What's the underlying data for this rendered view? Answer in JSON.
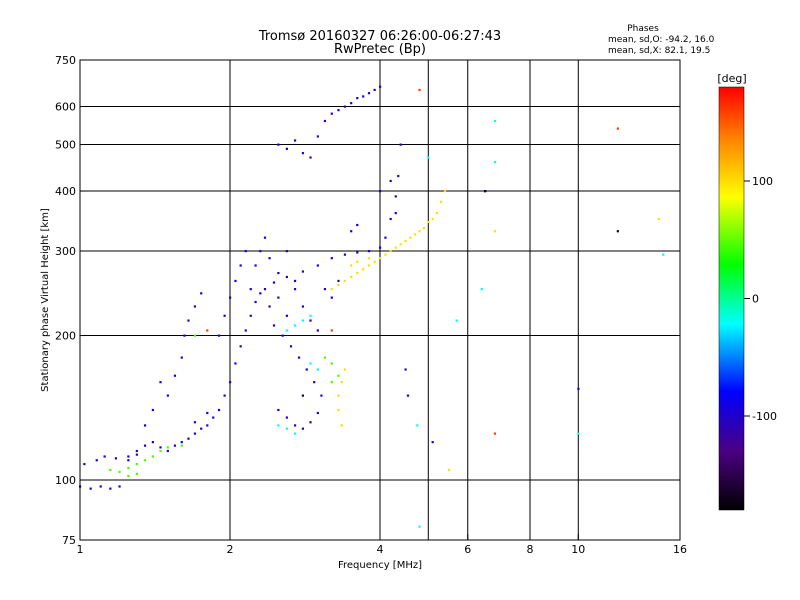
{
  "chart_data": {
    "type": "scatter",
    "title": "Tromsø 20160327 06:26:00-06:27:43",
    "subtitle": "RwPretec (Bp)",
    "xlabel": "Frequency [MHz]",
    "ylabel": "Stationary phase Virtual Height [km]",
    "x_scale": "log2",
    "y_scale": "log",
    "xlim": [
      1,
      16
    ],
    "ylim": [
      75,
      750
    ],
    "x_ticks": [
      1,
      2,
      4,
      6,
      8,
      10,
      16
    ],
    "y_ticks": [
      75,
      100,
      200,
      300,
      400,
      500,
      600,
      750
    ],
    "x_gridlines": [
      2,
      4,
      5,
      6,
      8,
      10
    ],
    "y_gridlines": [
      100,
      200,
      300,
      400,
      500,
      600
    ],
    "grid": true,
    "phases_box": {
      "title": "Phases",
      "line_o": "mean, sd,O: -94.2, 16.0",
      "line_x": "mean, sd,X:  82.1, 19.5"
    },
    "colorbar": {
      "label": "[deg]",
      "range": [
        -180,
        180
      ],
      "ticks": [
        100,
        0,
        -100
      ],
      "colormap": [
        "#000000",
        "#4b0082",
        "#0000ff",
        "#00ffff",
        "#00ff00",
        "#ffff00",
        "#ff0000"
      ]
    },
    "series": [
      {
        "phase_deg": -100,
        "points": [
          [
            1.0,
            97
          ],
          [
            1.05,
            96
          ],
          [
            1.1,
            97
          ],
          [
            1.15,
            96
          ],
          [
            1.2,
            97
          ],
          [
            1.02,
            108
          ],
          [
            1.08,
            110
          ],
          [
            1.12,
            112
          ],
          [
            1.18,
            111
          ],
          [
            1.25,
            112
          ],
          [
            1.3,
            115
          ],
          [
            1.35,
            118
          ],
          [
            1.4,
            120
          ],
          [
            1.45,
            117
          ],
          [
            1.5,
            115
          ],
          [
            1.55,
            118
          ],
          [
            1.6,
            120
          ],
          [
            1.65,
            122
          ],
          [
            1.7,
            125
          ],
          [
            1.75,
            128
          ],
          [
            1.8,
            130
          ],
          [
            1.85,
            135
          ],
          [
            1.9,
            140
          ],
          [
            1.95,
            150
          ],
          [
            2.0,
            160
          ],
          [
            2.05,
            175
          ],
          [
            2.1,
            190
          ],
          [
            2.15,
            205
          ],
          [
            2.2,
            220
          ],
          [
            2.25,
            235
          ],
          [
            2.3,
            245
          ],
          [
            2.35,
            250
          ],
          [
            2.45,
            258
          ],
          [
            2.6,
            265
          ],
          [
            2.8,
            272
          ],
          [
            3.0,
            280
          ],
          [
            3.2,
            290
          ],
          [
            3.4,
            295
          ],
          [
            3.6,
            298
          ],
          [
            3.8,
            300
          ],
          [
            4.0,
            305
          ],
          [
            4.1,
            320
          ],
          [
            4.2,
            350
          ],
          [
            4.3,
            390
          ],
          [
            4.35,
            430
          ],
          [
            4.4,
            500
          ],
          [
            1.5,
            150
          ],
          [
            1.55,
            165
          ],
          [
            1.6,
            180
          ],
          [
            1.62,
            200
          ],
          [
            1.65,
            215
          ],
          [
            1.7,
            230
          ],
          [
            1.75,
            245
          ],
          [
            1.4,
            140
          ],
          [
            1.35,
            130
          ],
          [
            1.45,
            160
          ],
          [
            2.2,
            250
          ],
          [
            2.25,
            280
          ],
          [
            2.3,
            300
          ],
          [
            2.35,
            320
          ],
          [
            2.4,
            290
          ],
          [
            2.5,
            270
          ],
          [
            2.6,
            300
          ],
          [
            2.7,
            250
          ],
          [
            2.8,
            230
          ],
          [
            2.9,
            215
          ],
          [
            3.0,
            205
          ],
          [
            2.45,
            210
          ],
          [
            2.55,
            200
          ],
          [
            2.65,
            190
          ],
          [
            2.75,
            180
          ],
          [
            2.85,
            170
          ],
          [
            2.95,
            160
          ],
          [
            3.05,
            150
          ],
          [
            2.5,
            140
          ],
          [
            2.6,
            135
          ],
          [
            2.7,
            130
          ],
          [
            2.8,
            128
          ],
          [
            2.9,
            132
          ],
          [
            3.0,
            138
          ],
          [
            2.5,
            500
          ],
          [
            2.6,
            490
          ],
          [
            2.7,
            510
          ],
          [
            2.8,
            480
          ],
          [
            2.9,
            470
          ],
          [
            3.0,
            520
          ],
          [
            3.1,
            560
          ],
          [
            3.2,
            580
          ],
          [
            3.3,
            590
          ],
          [
            3.4,
            600
          ],
          [
            3.5,
            610
          ],
          [
            3.6,
            625
          ],
          [
            3.7,
            630
          ],
          [
            3.8,
            640
          ],
          [
            3.9,
            650
          ],
          [
            4.0,
            660
          ],
          [
            4.0,
            400
          ],
          [
            4.2,
            420
          ],
          [
            4.3,
            360
          ],
          [
            3.5,
            330
          ],
          [
            3.6,
            340
          ],
          [
            1.9,
            200
          ],
          [
            1.95,
            220
          ],
          [
            2.0,
            240
          ],
          [
            2.05,
            260
          ],
          [
            2.1,
            280
          ],
          [
            2.15,
            300
          ],
          [
            2.4,
            230
          ],
          [
            2.5,
            240
          ],
          [
            2.6,
            220
          ],
          [
            2.7,
            260
          ],
          [
            1.3,
            113
          ],
          [
            1.25,
            110
          ],
          [
            1.7,
            132
          ],
          [
            1.8,
            138
          ],
          [
            3.1,
            250
          ],
          [
            3.2,
            240
          ],
          [
            3.3,
            260
          ],
          [
            4.5,
            170
          ],
          [
            4.55,
            150
          ],
          [
            5.1,
            120
          ],
          [
            6.5,
            400
          ],
          [
            10.0,
            155
          ]
        ]
      },
      {
        "phase_deg": 100,
        "points": [
          [
            3.2,
            250
          ],
          [
            3.3,
            255
          ],
          [
            3.4,
            260
          ],
          [
            3.5,
            265
          ],
          [
            3.6,
            270
          ],
          [
            3.7,
            275
          ],
          [
            3.8,
            280
          ],
          [
            3.9,
            285
          ],
          [
            4.0,
            290
          ],
          [
            4.2,
            300
          ],
          [
            4.4,
            310
          ],
          [
            4.6,
            320
          ],
          [
            4.8,
            330
          ],
          [
            5.0,
            345
          ],
          [
            5.2,
            360
          ],
          [
            5.3,
            380
          ],
          [
            5.4,
            400
          ],
          [
            3.5,
            280
          ],
          [
            3.6,
            285
          ],
          [
            3.8,
            290
          ],
          [
            4.1,
            295
          ],
          [
            4.3,
            305
          ],
          [
            4.5,
            315
          ],
          [
            4.7,
            325
          ],
          [
            4.9,
            335
          ],
          [
            5.1,
            350
          ],
          [
            3.3,
            150
          ],
          [
            3.35,
            160
          ],
          [
            3.4,
            170
          ],
          [
            3.3,
            140
          ],
          [
            3.35,
            130
          ],
          [
            6.8,
            330
          ],
          [
            14.5,
            350
          ],
          [
            5.5,
            105
          ]
        ]
      },
      {
        "phase_deg": 45,
        "points": [
          [
            1.15,
            105
          ],
          [
            1.2,
            104
          ],
          [
            1.25,
            106
          ],
          [
            1.3,
            108
          ],
          [
            1.35,
            110
          ],
          [
            1.4,
            112
          ],
          [
            1.45,
            115
          ],
          [
            1.5,
            117
          ],
          [
            1.6,
            118
          ],
          [
            1.25,
            102
          ],
          [
            1.3,
            103
          ],
          [
            3.1,
            180
          ],
          [
            3.2,
            175
          ],
          [
            3.3,
            165
          ],
          [
            3.2,
            160
          ],
          [
            1.7,
            200
          ]
        ]
      },
      {
        "phase_deg": -20,
        "points": [
          [
            2.7,
            210
          ],
          [
            2.8,
            215
          ],
          [
            2.9,
            220
          ],
          [
            2.6,
            205
          ],
          [
            2.9,
            175
          ],
          [
            3.0,
            170
          ],
          [
            2.5,
            130
          ],
          [
            2.6,
            128
          ],
          [
            2.7,
            125
          ],
          [
            6.8,
            560
          ],
          [
            6.8,
            460
          ],
          [
            4.75,
            130
          ],
          [
            10.0,
            125
          ],
          [
            14.8,
            295
          ],
          [
            5.7,
            215
          ],
          [
            5.0,
            470
          ],
          [
            6.4,
            250
          ],
          [
            4.8,
            80
          ]
        ]
      },
      {
        "phase_deg": 160,
        "points": [
          [
            4.8,
            650
          ],
          [
            1.8,
            205
          ],
          [
            6.8,
            125
          ],
          [
            12.0,
            540
          ],
          [
            3.2,
            205
          ]
        ]
      },
      {
        "phase_deg": -170,
        "points": [
          [
            12.0,
            330
          ],
          [
            2.8,
            150
          ],
          [
            6.5,
            400
          ]
        ]
      }
    ]
  }
}
